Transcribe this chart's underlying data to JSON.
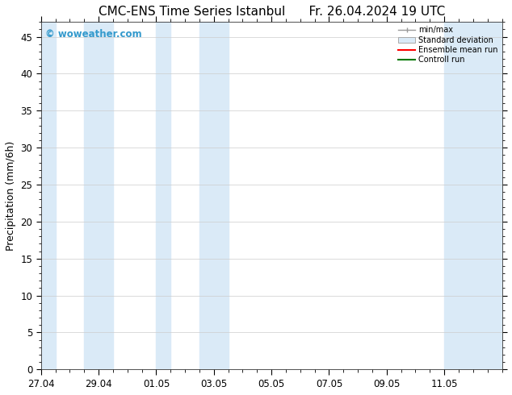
{
  "title_left": "CMC-ENS Time Series Istanbul",
  "title_right": "Fr. 26.04.2024 19 UTC",
  "ylabel": "Precipitation (mm/6h)",
  "xlabel_ticks": [
    "27.04",
    "29.04",
    "01.05",
    "03.05",
    "05.05",
    "07.05",
    "09.05",
    "11.05"
  ],
  "xtick_positions": [
    0,
    2,
    4,
    6,
    8,
    10,
    12,
    14
  ],
  "xlim": [
    0,
    16
  ],
  "ylim": [
    0,
    47
  ],
  "yticks": [
    0,
    5,
    10,
    15,
    20,
    25,
    30,
    35,
    40,
    45
  ],
  "watermark": "© woweather.com",
  "watermark_color": "#3399cc",
  "bg_color": "#ffffff",
  "plot_bg_color": "#ffffff",
  "band_color": "#daeaf7",
  "legend_labels": [
    "min/max",
    "Standard deviation",
    "Ensemble mean run",
    "Controll run"
  ],
  "legend_colors_line": [
    "#999999",
    "#aabbcc",
    "#ff0000",
    "#007700"
  ],
  "title_fontsize": 11,
  "tick_fontsize": 8.5,
  "ylabel_fontsize": 9,
  "shade_regions": [
    [
      0.0,
      0.5
    ],
    [
      1.5,
      2.5
    ],
    [
      4.0,
      4.5
    ],
    [
      5.5,
      6.5
    ],
    [
      14.0,
      16.0
    ]
  ]
}
